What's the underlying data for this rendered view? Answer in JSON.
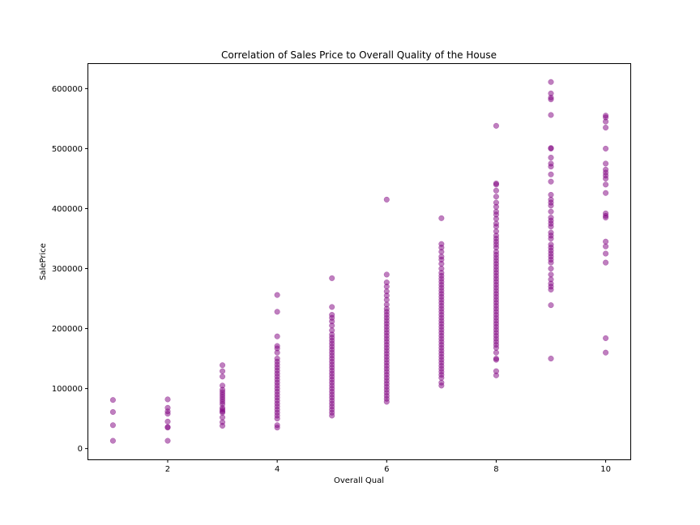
{
  "chart_data": {
    "type": "scatter",
    "title": "Correlation of Sales Price to Overall Quality of the House",
    "xlabel": "Overall Qual",
    "ylabel": "SalePrice",
    "xlim": [
      0.55,
      10.45
    ],
    "ylim": [
      -18000,
      641000
    ],
    "xticks": [
      2,
      4,
      6,
      8,
      10
    ],
    "yticks": [
      0,
      100000,
      200000,
      300000,
      400000,
      500000,
      600000
    ],
    "color": "#800080",
    "series": [
      {
        "name": "SalePrice",
        "points": [
          [
            1,
            13000
          ],
          [
            1,
            39000
          ],
          [
            1,
            61000
          ],
          [
            1,
            81000
          ],
          [
            2,
            13000
          ],
          [
            2,
            35000
          ],
          [
            2,
            36000
          ],
          [
            2,
            45000
          ],
          [
            2,
            58000
          ],
          [
            2,
            62000
          ],
          [
            2,
            68000
          ],
          [
            2,
            82000
          ],
          [
            3,
            38000
          ],
          [
            3,
            44000
          ],
          [
            3,
            52000
          ],
          [
            3,
            60000
          ],
          [
            3,
            62000
          ],
          [
            3,
            65000
          ],
          [
            3,
            68000
          ],
          [
            3,
            74000
          ],
          [
            3,
            78000
          ],
          [
            3,
            82000
          ],
          [
            3,
            86000
          ],
          [
            3,
            90000
          ],
          [
            3,
            94000
          ],
          [
            3,
            98000
          ],
          [
            3,
            105000
          ],
          [
            3,
            120000
          ],
          [
            3,
            129000
          ],
          [
            3,
            139000
          ],
          [
            4,
            35000
          ],
          [
            4,
            39000
          ],
          [
            4,
            50000
          ],
          [
            4,
            55000
          ],
          [
            4,
            60000
          ],
          [
            4,
            65000
          ],
          [
            4,
            70000
          ],
          [
            4,
            75000
          ],
          [
            4,
            80000
          ],
          [
            4,
            85000
          ],
          [
            4,
            90000
          ],
          [
            4,
            95000
          ],
          [
            4,
            100000
          ],
          [
            4,
            105000
          ],
          [
            4,
            110000
          ],
          [
            4,
            115000
          ],
          [
            4,
            120000
          ],
          [
            4,
            125000
          ],
          [
            4,
            130000
          ],
          [
            4,
            135000
          ],
          [
            4,
            140000
          ],
          [
            4,
            145000
          ],
          [
            4,
            150000
          ],
          [
            4,
            160000
          ],
          [
            4,
            167000
          ],
          [
            4,
            171000
          ],
          [
            4,
            187000
          ],
          [
            4,
            228000
          ],
          [
            4,
            256000
          ],
          [
            5,
            55000
          ],
          [
            5,
            60000
          ],
          [
            5,
            65000
          ],
          [
            5,
            70000
          ],
          [
            5,
            75000
          ],
          [
            5,
            80000
          ],
          [
            5,
            85000
          ],
          [
            5,
            90000
          ],
          [
            5,
            95000
          ],
          [
            5,
            100000
          ],
          [
            5,
            105000
          ],
          [
            5,
            110000
          ],
          [
            5,
            115000
          ],
          [
            5,
            120000
          ],
          [
            5,
            125000
          ],
          [
            5,
            130000
          ],
          [
            5,
            135000
          ],
          [
            5,
            140000
          ],
          [
            5,
            145000
          ],
          [
            5,
            150000
          ],
          [
            5,
            155000
          ],
          [
            5,
            160000
          ],
          [
            5,
            165000
          ],
          [
            5,
            170000
          ],
          [
            5,
            175000
          ],
          [
            5,
            180000
          ],
          [
            5,
            185000
          ],
          [
            5,
            190000
          ],
          [
            5,
            197000
          ],
          [
            5,
            205000
          ],
          [
            5,
            212000
          ],
          [
            5,
            218000
          ],
          [
            5,
            223000
          ],
          [
            5,
            236000
          ],
          [
            5,
            284000
          ],
          [
            6,
            78000
          ],
          [
            6,
            83000
          ],
          [
            6,
            88000
          ],
          [
            6,
            93000
          ],
          [
            6,
            98000
          ],
          [
            6,
            103000
          ],
          [
            6,
            108000
          ],
          [
            6,
            113000
          ],
          [
            6,
            118000
          ],
          [
            6,
            123000
          ],
          [
            6,
            128000
          ],
          [
            6,
            133000
          ],
          [
            6,
            138000
          ],
          [
            6,
            143000
          ],
          [
            6,
            148000
          ],
          [
            6,
            153000
          ],
          [
            6,
            158000
          ],
          [
            6,
            163000
          ],
          [
            6,
            168000
          ],
          [
            6,
            173000
          ],
          [
            6,
            178000
          ],
          [
            6,
            183000
          ],
          [
            6,
            188000
          ],
          [
            6,
            193000
          ],
          [
            6,
            198000
          ],
          [
            6,
            203000
          ],
          [
            6,
            208000
          ],
          [
            6,
            213000
          ],
          [
            6,
            218000
          ],
          [
            6,
            223000
          ],
          [
            6,
            228000
          ],
          [
            6,
            233000
          ],
          [
            6,
            240000
          ],
          [
            6,
            248000
          ],
          [
            6,
            255000
          ],
          [
            6,
            262000
          ],
          [
            6,
            270000
          ],
          [
            6,
            277000
          ],
          [
            6,
            290000
          ],
          [
            6,
            415000
          ],
          [
            7,
            105000
          ],
          [
            7,
            110000
          ],
          [
            7,
            118000
          ],
          [
            7,
            123000
          ],
          [
            7,
            128000
          ],
          [
            7,
            133000
          ],
          [
            7,
            138000
          ],
          [
            7,
            143000
          ],
          [
            7,
            148000
          ],
          [
            7,
            153000
          ],
          [
            7,
            158000
          ],
          [
            7,
            163000
          ],
          [
            7,
            168000
          ],
          [
            7,
            173000
          ],
          [
            7,
            178000
          ],
          [
            7,
            183000
          ],
          [
            7,
            188000
          ],
          [
            7,
            193000
          ],
          [
            7,
            198000
          ],
          [
            7,
            203000
          ],
          [
            7,
            208000
          ],
          [
            7,
            213000
          ],
          [
            7,
            218000
          ],
          [
            7,
            223000
          ],
          [
            7,
            228000
          ],
          [
            7,
            233000
          ],
          [
            7,
            238000
          ],
          [
            7,
            243000
          ],
          [
            7,
            248000
          ],
          [
            7,
            253000
          ],
          [
            7,
            258000
          ],
          [
            7,
            263000
          ],
          [
            7,
            268000
          ],
          [
            7,
            273000
          ],
          [
            7,
            278000
          ],
          [
            7,
            283000
          ],
          [
            7,
            288000
          ],
          [
            7,
            293000
          ],
          [
            7,
            300000
          ],
          [
            7,
            308000
          ],
          [
            7,
            315000
          ],
          [
            7,
            320000
          ],
          [
            7,
            328000
          ],
          [
            7,
            335000
          ],
          [
            7,
            341000
          ],
          [
            7,
            384000
          ],
          [
            8,
            122000
          ],
          [
            8,
            129000
          ],
          [
            8,
            148000
          ],
          [
            8,
            150000
          ],
          [
            8,
            160000
          ],
          [
            8,
            168000
          ],
          [
            8,
            173000
          ],
          [
            8,
            178000
          ],
          [
            8,
            183000
          ],
          [
            8,
            188000
          ],
          [
            8,
            193000
          ],
          [
            8,
            198000
          ],
          [
            8,
            203000
          ],
          [
            8,
            208000
          ],
          [
            8,
            213000
          ],
          [
            8,
            218000
          ],
          [
            8,
            223000
          ],
          [
            8,
            228000
          ],
          [
            8,
            233000
          ],
          [
            8,
            238000
          ],
          [
            8,
            243000
          ],
          [
            8,
            248000
          ],
          [
            8,
            253000
          ],
          [
            8,
            258000
          ],
          [
            8,
            263000
          ],
          [
            8,
            268000
          ],
          [
            8,
            273000
          ],
          [
            8,
            278000
          ],
          [
            8,
            283000
          ],
          [
            8,
            288000
          ],
          [
            8,
            293000
          ],
          [
            8,
            298000
          ],
          [
            8,
            303000
          ],
          [
            8,
            308000
          ],
          [
            8,
            313000
          ],
          [
            8,
            318000
          ],
          [
            8,
            323000
          ],
          [
            8,
            328000
          ],
          [
            8,
            335000
          ],
          [
            8,
            340000
          ],
          [
            8,
            345000
          ],
          [
            8,
            350000
          ],
          [
            8,
            355000
          ],
          [
            8,
            362000
          ],
          [
            8,
            370000
          ],
          [
            8,
            375000
          ],
          [
            8,
            383000
          ],
          [
            8,
            390000
          ],
          [
            8,
            395000
          ],
          [
            8,
            403000
          ],
          [
            8,
            410000
          ],
          [
            8,
            420000
          ],
          [
            8,
            430000
          ],
          [
            8,
            440000
          ],
          [
            8,
            442000
          ],
          [
            8,
            538000
          ],
          [
            9,
            150000
          ],
          [
            9,
            239000
          ],
          [
            9,
            265000
          ],
          [
            9,
            270000
          ],
          [
            9,
            275000
          ],
          [
            9,
            282000
          ],
          [
            9,
            290000
          ],
          [
            9,
            300000
          ],
          [
            9,
            310000
          ],
          [
            9,
            315000
          ],
          [
            9,
            320000
          ],
          [
            9,
            325000
          ],
          [
            9,
            330000
          ],
          [
            9,
            335000
          ],
          [
            9,
            340000
          ],
          [
            9,
            350000
          ],
          [
            9,
            355000
          ],
          [
            9,
            360000
          ],
          [
            9,
            370000
          ],
          [
            9,
            375000
          ],
          [
            9,
            380000
          ],
          [
            9,
            385000
          ],
          [
            9,
            395000
          ],
          [
            9,
            405000
          ],
          [
            9,
            410000
          ],
          [
            9,
            415000
          ],
          [
            9,
            423000
          ],
          [
            9,
            445000
          ],
          [
            9,
            457000
          ],
          [
            9,
            470000
          ],
          [
            9,
            475000
          ],
          [
            9,
            485000
          ],
          [
            9,
            500000
          ],
          [
            9,
            501000
          ],
          [
            9,
            556000
          ],
          [
            9,
            582000
          ],
          [
            9,
            585000
          ],
          [
            9,
            592000
          ],
          [
            9,
            611000
          ],
          [
            10,
            160000
          ],
          [
            10,
            184000
          ],
          [
            10,
            310000
          ],
          [
            10,
            325000
          ],
          [
            10,
            337000
          ],
          [
            10,
            345000
          ],
          [
            10,
            385000
          ],
          [
            10,
            388000
          ],
          [
            10,
            392000
          ],
          [
            10,
            426000
          ],
          [
            10,
            440000
          ],
          [
            10,
            450000
          ],
          [
            10,
            455000
          ],
          [
            10,
            460000
          ],
          [
            10,
            465000
          ],
          [
            10,
            475000
          ],
          [
            10,
            500000
          ],
          [
            10,
            535000
          ],
          [
            10,
            545000
          ],
          [
            10,
            552000
          ],
          [
            10,
            555000
          ]
        ]
      }
    ]
  }
}
